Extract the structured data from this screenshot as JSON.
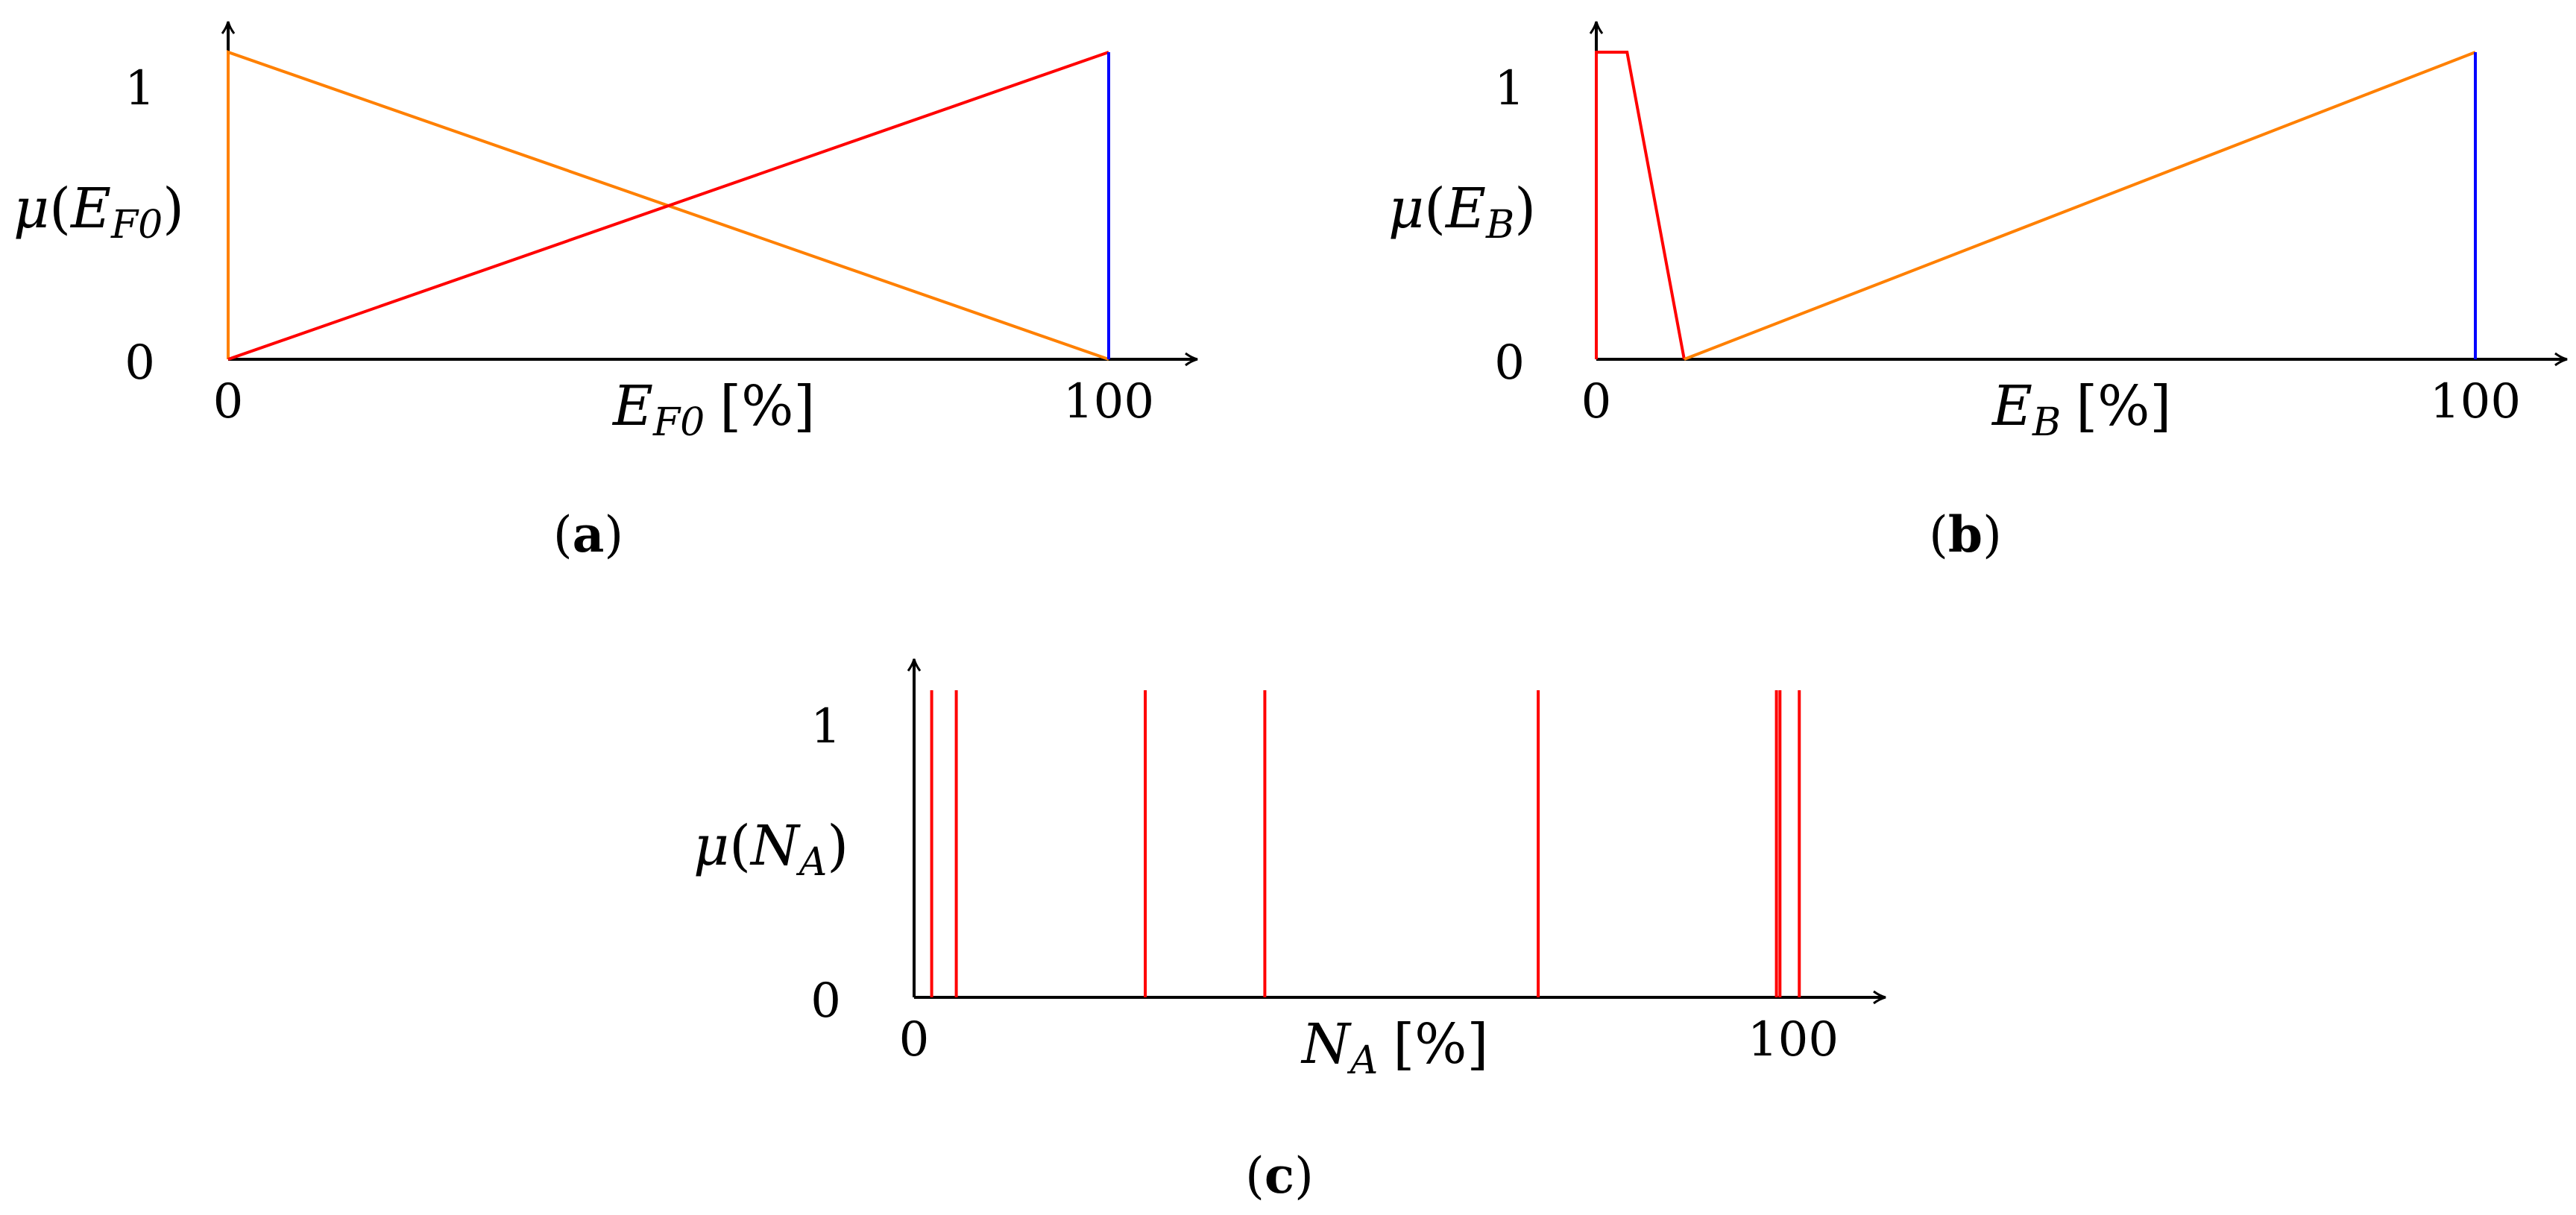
{
  "colors": {
    "red": "#ff0000",
    "orange": "#ff8000",
    "blue": "#0000ff",
    "axis": "#000000"
  },
  "chart_data": [
    {
      "type": "line",
      "caption": "a",
      "xlabel": {
        "var": "E",
        "sub": "F0",
        "unit": "[%]"
      },
      "ylabel": {
        "fn": "μ",
        "var": "E",
        "sub": "F0"
      },
      "x_ticks": [
        "0",
        "100"
      ],
      "y_ticks": [
        "0",
        "1"
      ],
      "xlim": [
        0,
        110
      ],
      "ylim": [
        0,
        1.1
      ],
      "series": [
        {
          "color": "orange",
          "x": [
            0,
            0,
            100
          ],
          "y": [
            0,
            1,
            0
          ]
        },
        {
          "color": "red",
          "x": [
            0,
            100
          ],
          "y": [
            0,
            1
          ]
        },
        {
          "color": "blue",
          "x": [
            100,
            100
          ],
          "y": [
            0,
            1
          ]
        }
      ]
    },
    {
      "type": "line",
      "caption": "b",
      "xlabel": {
        "var": "E",
        "sub": "B",
        "unit": "[%]"
      },
      "ylabel": {
        "fn": "μ",
        "var": "E",
        "sub": "B"
      },
      "x_ticks": [
        "0",
        "100"
      ],
      "y_ticks": [
        "0",
        "1"
      ],
      "xlim": [
        0,
        110
      ],
      "ylim": [
        0,
        1.1
      ],
      "series": [
        {
          "color": "red",
          "x": [
            0,
            0,
            3.5,
            10
          ],
          "y": [
            0,
            1,
            1,
            0
          ]
        },
        {
          "color": "orange",
          "x": [
            10,
            100
          ],
          "y": [
            0,
            1
          ]
        },
        {
          "color": "blue",
          "x": [
            100,
            100
          ],
          "y": [
            0,
            1
          ]
        }
      ]
    },
    {
      "type": "bar",
      "caption": "c",
      "xlabel": {
        "var": "N",
        "sub": "A",
        "unit": "[%]"
      },
      "ylabel": {
        "fn": "μ",
        "var": "N",
        "sub": "A"
      },
      "x_ticks": [
        "0",
        "100"
      ],
      "y_ticks": [
        "0",
        "1"
      ],
      "xlim": [
        0,
        110
      ],
      "ylim": [
        0,
        1.1
      ],
      "series": [
        {
          "color": "red",
          "x": [
            2,
            4.8,
            26.3,
            39.9,
            71,
            98.1,
            98.5,
            100.7
          ],
          "y": [
            1,
            1,
            1,
            1,
            1,
            1,
            1,
            1
          ]
        }
      ]
    }
  ]
}
